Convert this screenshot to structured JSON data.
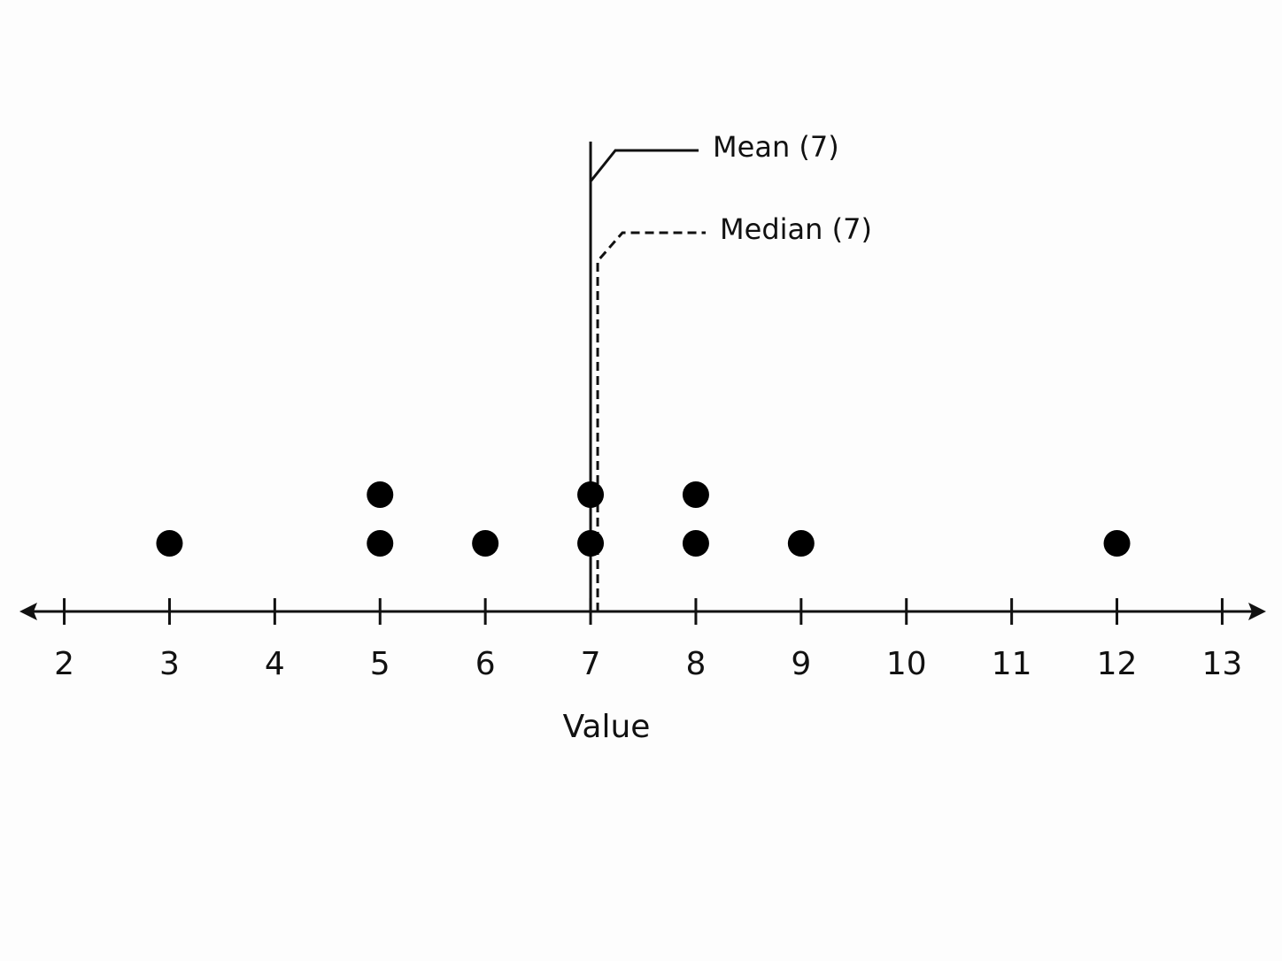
{
  "chart_data": {
    "type": "dot",
    "x": [
      3,
      5,
      5,
      6,
      7,
      7,
      8,
      8,
      9,
      12
    ],
    "color": "#000000",
    "xlabel": "Value",
    "xlim": [
      1.6,
      13.4
    ],
    "xticks": [
      2,
      3,
      4,
      5,
      6,
      7,
      8,
      9,
      10,
      11,
      12,
      13
    ],
    "annotations": [
      {
        "label": "Mean (7)",
        "value": 7,
        "style": "solid"
      },
      {
        "label": "Median (7)",
        "value": 7,
        "style": "dashed"
      }
    ]
  }
}
